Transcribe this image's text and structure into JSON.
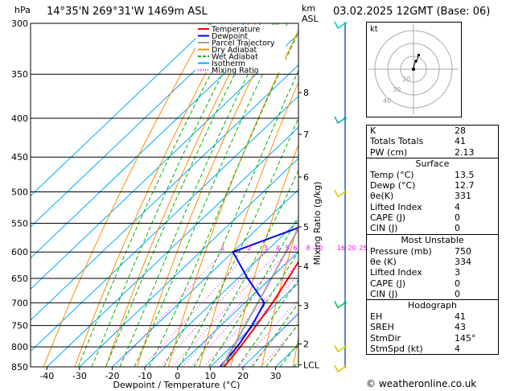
{
  "header": {
    "location": "14°35'N  269°31'W  1469m  ASL",
    "pressure_unit": "hPa",
    "height_unit": "km\nASL",
    "datetime": "03.02.2025  12GMT  (Base: 06)"
  },
  "chart_data": {
    "type": "skew-t",
    "xlabel": "Dewpoint / Temperature (°C)",
    "ylabel_right": "Mixing Ratio (g/kg)",
    "pressure_levels": [
      300,
      350,
      400,
      450,
      500,
      550,
      600,
      650,
      700,
      750,
      800,
      850
    ],
    "temperature_ticks": [
      -40,
      -30,
      -20,
      -10,
      0,
      10,
      20,
      30
    ],
    "xlim": [
      -45,
      37
    ],
    "ylim": [
      300,
      850
    ],
    "height_ticks_km": [
      {
        "label": "8",
        "p": 370
      },
      {
        "label": "7",
        "p": 420
      },
      {
        "label": "6",
        "p": 478
      },
      {
        "label": "5",
        "p": 556
      },
      {
        "label": "4",
        "p": 627
      },
      {
        "label": "3",
        "p": 706
      },
      {
        "label": "2",
        "p": 793
      },
      {
        "label": "LCL",
        "p": 845
      }
    ],
    "mixing_ratio_labels": [
      "1",
      "2",
      "3",
      "4",
      "5",
      "6",
      "8",
      "10",
      "16",
      "20",
      "25"
    ],
    "mixing_ratio_values": [
      1,
      2,
      3,
      4,
      5,
      6,
      8,
      10,
      16,
      20,
      25
    ],
    "legend": [
      "Temperature",
      "Dewpoint",
      "Parcel Trajectory",
      "Dry Adiabat",
      "Wet Adiabat",
      "Isotherm",
      "Mixing Ratio"
    ],
    "colors": {
      "temperature": "#ff0000",
      "dewpoint": "#0000ff",
      "parcel": "#a0a0a0",
      "dry_adiabat": "#ff8c00",
      "wet_adiabat": "#00b000",
      "isotherm": "#00aaff",
      "mixing_ratio": "#ff00ff"
    },
    "series": [
      {
        "name": "Temperature",
        "points": [
          [
            850,
            14.2
          ],
          [
            800,
            12.8
          ],
          [
            750,
            10.8
          ],
          [
            700,
            8.5
          ],
          [
            650,
            5.4
          ],
          [
            600,
            2.0
          ],
          [
            550,
            -1.5
          ],
          [
            500,
            -6.0
          ],
          [
            450,
            -11.5
          ],
          [
            400,
            -17.5
          ],
          [
            350,
            -25.0
          ],
          [
            300,
            -33.5
          ]
        ]
      },
      {
        "name": "Dewpoint",
        "points": [
          [
            850,
            13.0
          ],
          [
            800,
            11.8
          ],
          [
            750,
            9.5
          ],
          [
            700,
            6.0
          ],
          [
            650,
            -7.0
          ],
          [
            600,
            -20.0
          ],
          [
            550,
            -5.5
          ],
          [
            500,
            -8.0
          ],
          [
            450,
            -12.5
          ],
          [
            400,
            -40.0
          ],
          [
            350,
            -48.0
          ],
          [
            300,
            -46.0
          ]
        ]
      },
      {
        "name": "Parcel Trajectory",
        "points": [
          [
            850,
            13.5
          ],
          [
            800,
            10.6
          ],
          [
            750,
            7.4
          ],
          [
            700,
            4.0
          ],
          [
            650,
            0.3
          ],
          [
            600,
            -3.8
          ],
          [
            550,
            -8.3
          ],
          [
            500,
            -13.5
          ],
          [
            450,
            -19.3
          ],
          [
            400,
            -26.0
          ],
          [
            350,
            -34.0
          ],
          [
            300,
            -43.0
          ]
        ]
      }
    ],
    "wind_barbs": [
      {
        "p": 300,
        "color": "#00cccc"
      },
      {
        "p": 400,
        "color": "#00aaaa"
      },
      {
        "p": 500,
        "color": "#cccc00"
      },
      {
        "p": 700,
        "color": "#00bb55"
      },
      {
        "p": 800,
        "color": "#cccc00"
      },
      {
        "p": 850,
        "color": "#cccc00"
      }
    ]
  },
  "hodograph": {
    "label": "kt",
    "ring_labels": [
      "20",
      "30",
      "40"
    ]
  },
  "indices": [
    {
      "label": "K",
      "value": "28"
    },
    {
      "label": "Totals Totals",
      "value": "41"
    },
    {
      "label": "PW (cm)",
      "value": "2.13"
    }
  ],
  "surface": {
    "title": "Surface",
    "rows": [
      {
        "label": "Temp (°C)",
        "value": "13.5"
      },
      {
        "label": "Dewp (°C)",
        "value": "12.7"
      },
      {
        "label": "θe(K)",
        "value": "331"
      },
      {
        "label": "Lifted Index",
        "value": "4"
      },
      {
        "label": "CAPE (J)",
        "value": "0"
      },
      {
        "label": "CIN (J)",
        "value": "0"
      }
    ]
  },
  "most_unstable": {
    "title": "Most Unstable",
    "rows": [
      {
        "label": "Pressure (mb)",
        "value": "750"
      },
      {
        "label": "θe (K)",
        "value": "334"
      },
      {
        "label": "Lifted Index",
        "value": "3"
      },
      {
        "label": "CAPE (J)",
        "value": "0"
      },
      {
        "label": "CIN (J)",
        "value": "0"
      }
    ]
  },
  "hodograph_box": {
    "title": "Hodograph",
    "rows": [
      {
        "label": "EH",
        "value": "41"
      },
      {
        "label": "SREH",
        "value": "43"
      },
      {
        "label": "StmDir",
        "value": "145°"
      },
      {
        "label": "StmSpd (kt)",
        "value": "4"
      }
    ]
  },
  "credit": "© weatheronline.co.uk"
}
